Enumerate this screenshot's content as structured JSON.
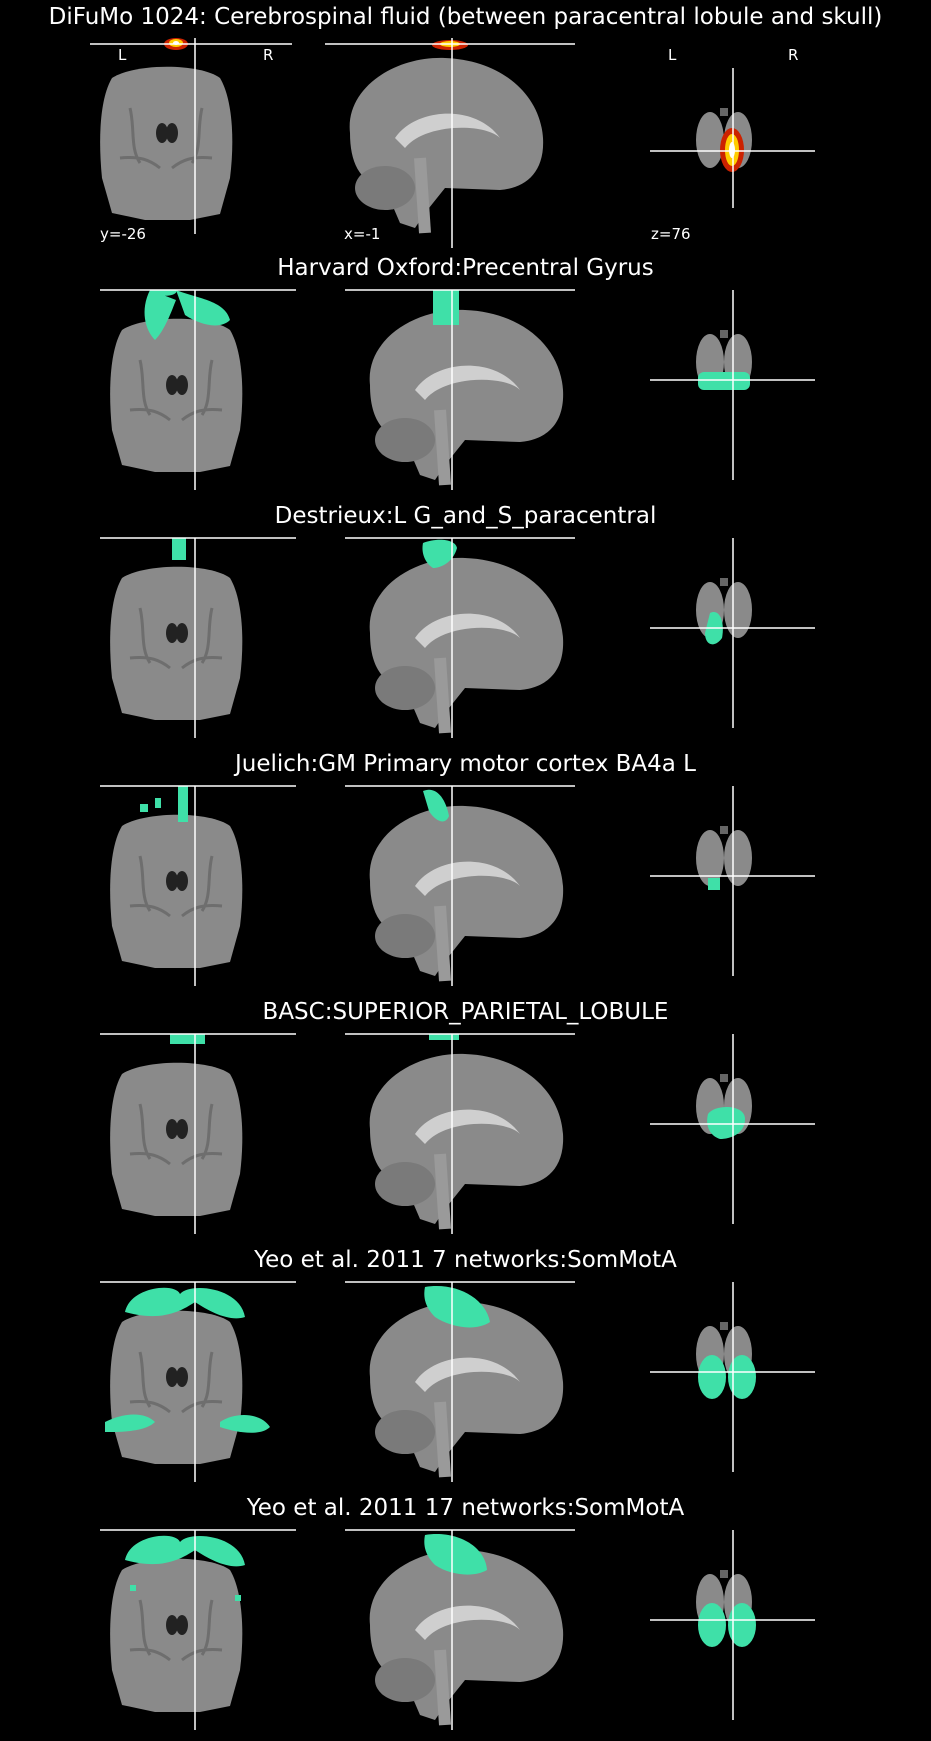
{
  "main_title": "DiFuMo 1024: Cerebrospinal fluid (between paracentral lobule and skull)",
  "orientation": {
    "left": "L",
    "right": "R"
  },
  "coords": {
    "coronal": "y=-26",
    "sagittal": "x=-1",
    "axial": "z=76"
  },
  "colors": {
    "background": "#000000",
    "overlay": "#3fe0a8",
    "heat_hot": "#ffffff",
    "heat_mid": "#ffcc00",
    "heat_low": "#cc2200",
    "crosshair": "#ffffff"
  },
  "atlas_rows": [
    {
      "label": "Harvard Oxford:Precentral Gyrus"
    },
    {
      "label": "Destrieux:L G_and_S_paracentral"
    },
    {
      "label": "Juelich:GM Primary motor cortex BA4a L"
    },
    {
      "label": "BASC:SUPERIOR_PARIETAL_LOBULE"
    },
    {
      "label": "Yeo et al. 2011 7 networks:SomMotA"
    },
    {
      "label": "Yeo et al. 2011 17 networks:SomMotA"
    }
  ]
}
